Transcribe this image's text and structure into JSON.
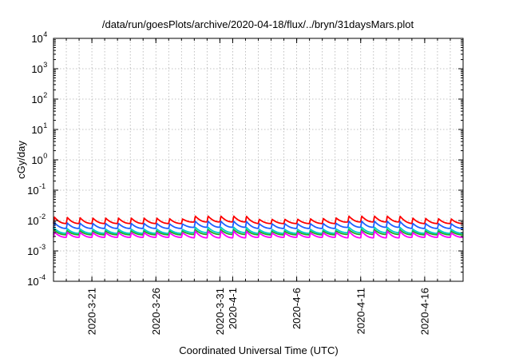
{
  "chart_data": {
    "type": "line",
    "title": "/data/run/goesPlots/archive/2020-04-18/flux/../bryn/31daysMars.plot",
    "xlabel": "Coordinated Universal Time (UTC)",
    "ylabel": "cGy/day",
    "yscale": "log",
    "ylim": [
      0.0001,
      10000
    ],
    "yticks": [
      {
        "base": "10",
        "exp": "-4",
        "value": 0.0001
      },
      {
        "base": "10",
        "exp": "-3",
        "value": 0.001
      },
      {
        "base": "10",
        "exp": "-2",
        "value": 0.01
      },
      {
        "base": "10",
        "exp": "-1",
        "value": 0.1
      },
      {
        "base": "10",
        "exp": "0",
        "value": 1
      },
      {
        "base": "10",
        "exp": "1",
        "value": 10
      },
      {
        "base": "10",
        "exp": "2",
        "value": 100
      },
      {
        "base": "10",
        "exp": "3",
        "value": 1000
      },
      {
        "base": "10",
        "exp": "4",
        "value": 10000
      }
    ],
    "xlim": [
      "2020-03-18",
      "2020-04-19"
    ],
    "xticks": [
      {
        "label": "2020-3-21",
        "date": "2020-03-21"
      },
      {
        "label": "2020-3-26",
        "date": "2020-03-26"
      },
      {
        "label": "2020-3-31",
        "date": "2020-03-31"
      },
      {
        "label": "2020-4-1",
        "date": "2020-04-01"
      },
      {
        "label": "2020-4-6",
        "date": "2020-04-06"
      },
      {
        "label": "2020-4-11",
        "date": "2020-04-11"
      },
      {
        "label": "2020-4-16",
        "date": "2020-04-16"
      }
    ],
    "grid": true,
    "legend": "none",
    "diurnal_cycle": {
      "period_days": 1,
      "value_at_daily_peak": "max",
      "value_between_peaks": "min"
    },
    "series": [
      {
        "color": "#ff0000",
        "x": [
          "2020-03-18",
          "2020-03-21",
          "2020-03-26",
          "2020-03-28",
          "2020-03-29",
          "2020-04-02",
          "2020-04-03",
          "2020-04-06",
          "2020-04-09",
          "2020-04-10",
          "2020-04-14",
          "2020-04-15",
          "2020-04-19"
        ],
        "max": [
          0.013,
          0.012,
          0.012,
          0.011,
          0.014,
          0.014,
          0.011,
          0.011,
          0.012,
          0.014,
          0.014,
          0.012,
          0.011
        ],
        "min": [
          0.008,
          0.008,
          0.008,
          0.008,
          0.009,
          0.009,
          0.008,
          0.008,
          0.008,
          0.009,
          0.009,
          0.008,
          0.008
        ]
      },
      {
        "color": "#1f5fff",
        "x": [
          "2020-03-18",
          "2020-03-21",
          "2020-03-26",
          "2020-03-28",
          "2020-03-29",
          "2020-04-02",
          "2020-04-03",
          "2020-04-06",
          "2020-04-09",
          "2020-04-10",
          "2020-04-14",
          "2020-04-15",
          "2020-04-19"
        ],
        "max": [
          0.0085,
          0.008,
          0.008,
          0.0075,
          0.0095,
          0.0095,
          0.0078,
          0.0078,
          0.008,
          0.0095,
          0.0095,
          0.008,
          0.0078
        ],
        "min": [
          0.0055,
          0.0055,
          0.0055,
          0.0055,
          0.006,
          0.006,
          0.0055,
          0.0055,
          0.0055,
          0.006,
          0.006,
          0.0055,
          0.0055
        ]
      },
      {
        "color": "#00cccc",
        "x": [
          "2020-03-18",
          "2020-03-21",
          "2020-03-26",
          "2020-03-28",
          "2020-03-29",
          "2020-04-02",
          "2020-04-03",
          "2020-04-06",
          "2020-04-09",
          "2020-04-10",
          "2020-04-14",
          "2020-04-15",
          "2020-04-19"
        ],
        "max": [
          0.0055,
          0.0052,
          0.0052,
          0.005,
          0.006,
          0.006,
          0.0051,
          0.0051,
          0.0052,
          0.006,
          0.006,
          0.0052,
          0.0051
        ],
        "min": [
          0.0038,
          0.0038,
          0.0038,
          0.0038,
          0.004,
          0.004,
          0.0038,
          0.0038,
          0.0038,
          0.004,
          0.004,
          0.0038,
          0.0038
        ]
      },
      {
        "color": "#22aa22",
        "x": [
          "2020-03-18",
          "2020-03-21",
          "2020-03-26",
          "2020-03-28",
          "2020-03-29",
          "2020-04-02",
          "2020-04-03",
          "2020-04-06",
          "2020-04-09",
          "2020-04-10",
          "2020-04-14",
          "2020-04-15",
          "2020-04-19"
        ],
        "max": [
          0.0047,
          0.0045,
          0.0045,
          0.0044,
          0.005,
          0.005,
          0.0044,
          0.0044,
          0.0045,
          0.005,
          0.005,
          0.0045,
          0.0044
        ],
        "min": [
          0.0034,
          0.0034,
          0.0034,
          0.0034,
          0.0035,
          0.0035,
          0.0034,
          0.0034,
          0.0034,
          0.0035,
          0.0035,
          0.0034,
          0.0034
        ]
      },
      {
        "color": "#ff00ff",
        "x": [
          "2020-03-18",
          "2020-03-21",
          "2020-03-26",
          "2020-03-28",
          "2020-03-29",
          "2020-04-02",
          "2020-04-03",
          "2020-04-06",
          "2020-04-09",
          "2020-04-10",
          "2020-04-14",
          "2020-04-15",
          "2020-04-19"
        ],
        "max": [
          0.0042,
          0.004,
          0.004,
          0.0039,
          0.0045,
          0.0045,
          0.0039,
          0.0039,
          0.004,
          0.0045,
          0.0045,
          0.004,
          0.0039
        ],
        "min": [
          0.0028,
          0.0028,
          0.0028,
          0.0028,
          0.0027,
          0.0027,
          0.0028,
          0.0028,
          0.0028,
          0.0027,
          0.0027,
          0.0028,
          0.0028
        ]
      }
    ]
  }
}
